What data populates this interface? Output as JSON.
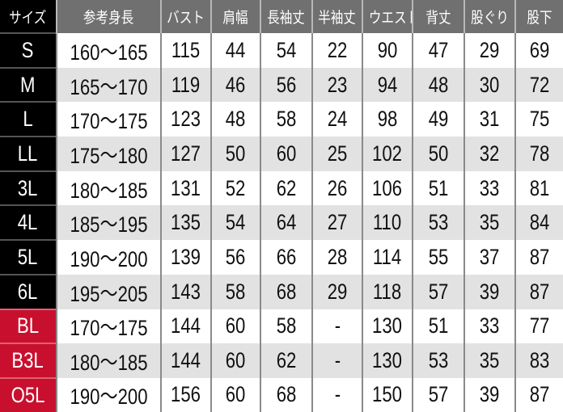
{
  "colors": {
    "header_bg": "#707070",
    "size_bg": "#000000",
    "size_bg_special": "#c8102e",
    "row_alt_bg": "#e2e2e2"
  },
  "headers": [
    "サイズ",
    "参考身長",
    "バスト",
    "肩幅",
    "長袖丈",
    "半袖丈",
    "ウエスト",
    "背丈",
    "股ぐり",
    "股下"
  ],
  "rows": [
    {
      "special": false,
      "cells": [
        "S",
        "160～165",
        "115",
        "44",
        "54",
        "22",
        "90",
        "47",
        "29",
        "69"
      ]
    },
    {
      "special": false,
      "cells": [
        "M",
        "165～170",
        "119",
        "46",
        "56",
        "23",
        "94",
        "48",
        "30",
        "72"
      ]
    },
    {
      "special": false,
      "cells": [
        "L",
        "170～175",
        "123",
        "48",
        "58",
        "24",
        "98",
        "49",
        "31",
        "75"
      ]
    },
    {
      "special": false,
      "cells": [
        "LL",
        "175～180",
        "127",
        "50",
        "60",
        "25",
        "102",
        "50",
        "32",
        "78"
      ]
    },
    {
      "special": false,
      "cells": [
        "3L",
        "180～185",
        "131",
        "52",
        "62",
        "26",
        "106",
        "51",
        "33",
        "81"
      ]
    },
    {
      "special": false,
      "cells": [
        "4L",
        "185～195",
        "135",
        "54",
        "64",
        "27",
        "110",
        "53",
        "35",
        "84"
      ]
    },
    {
      "special": false,
      "cells": [
        "5L",
        "190～200",
        "139",
        "56",
        "66",
        "28",
        "114",
        "55",
        "37",
        "87"
      ]
    },
    {
      "special": false,
      "cells": [
        "6L",
        "195～205",
        "143",
        "58",
        "68",
        "29",
        "118",
        "57",
        "39",
        "87"
      ]
    },
    {
      "special": true,
      "cells": [
        "BL",
        "170～175",
        "144",
        "60",
        "58",
        "-",
        "130",
        "51",
        "33",
        "77"
      ]
    },
    {
      "special": true,
      "cells": [
        "B3L",
        "180～185",
        "144",
        "60",
        "62",
        "-",
        "130",
        "53",
        "35",
        "83"
      ]
    },
    {
      "special": true,
      "cells": [
        "O5L",
        "190～200",
        "156",
        "60",
        "68",
        "-",
        "150",
        "57",
        "39",
        "87"
      ]
    }
  ]
}
